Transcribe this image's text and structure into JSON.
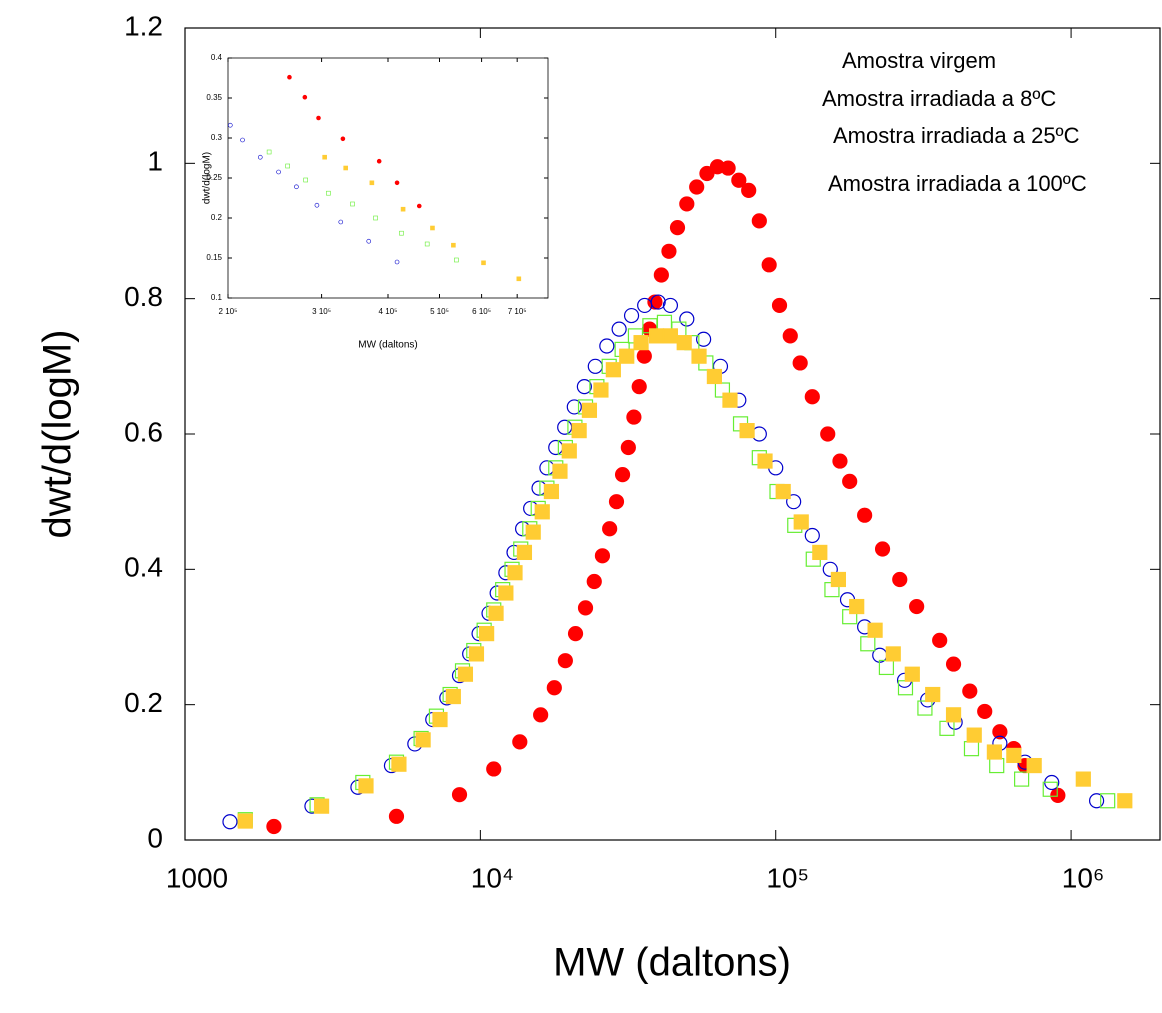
{
  "chart_data": [
    {
      "type": "scatter",
      "x_label": "MW (daltons)",
      "y_label": "dwt/d(logM)",
      "xscale": "log",
      "xlim": [
        1000,
        2000000
      ],
      "ylim": [
        0,
        1.2
      ],
      "xticks": [
        1000,
        {
          "value": 10000,
          "label": "10⁴"
        },
        {
          "value": 100000,
          "label": "10⁵"
        },
        {
          "value": 1000000,
          "label": "10⁶"
        }
      ],
      "yticks": [
        0,
        0.2,
        0.4,
        0.6,
        0.8,
        1,
        1.2
      ],
      "legend": "upper right",
      "series": [
        {
          "name": "Amostra virgem",
          "color": "#ff0000",
          "marker": "circle",
          "filled": true,
          "x": [
            2000,
            5200,
            8500,
            11100,
            13600,
            16000,
            17800,
            19400,
            21000,
            22700,
            24300,
            25900,
            27400,
            28900,
            30300,
            31700,
            33100,
            34500,
            35900,
            37400,
            39000,
            41000,
            43500,
            46500,
            50000,
            54000,
            58500,
            63500,
            69000,
            75000,
            81000,
            88000,
            95000,
            103000,
            112000,
            121000,
            133000,
            150000,
            165000,
            178000,
            200000,
            230000,
            263000,
            300000,
            359000,
            400000,
            454000,
            510000,
            574000,
            640000,
            698000,
            902000
          ],
          "values": [
            0.02,
            0.035,
            0.067,
            0.105,
            0.145,
            0.185,
            0.225,
            0.265,
            0.305,
            0.343,
            0.382,
            0.42,
            0.46,
            0.5,
            0.54,
            0.58,
            0.625,
            0.67,
            0.715,
            0.755,
            0.795,
            0.835,
            0.87,
            0.905,
            0.94,
            0.965,
            0.985,
            0.995,
            0.993,
            0.975,
            0.96,
            0.915,
            0.85,
            0.79,
            0.745,
            0.705,
            0.655,
            0.6,
            0.56,
            0.53,
            0.48,
            0.43,
            0.385,
            0.345,
            0.295,
            0.26,
            0.22,
            0.19,
            0.16,
            0.135,
            0.11,
            0.066
          ]
        },
        {
          "name": "Amostra irradiada a 8ºC",
          "color": "#0000cc",
          "marker": "circle",
          "filled": false,
          "x": [
            1420,
            2690,
            3850,
            5000,
            6000,
            6900,
            7700,
            8500,
            9200,
            9900,
            10700,
            11400,
            12200,
            13000,
            13900,
            14800,
            15800,
            16800,
            18000,
            19300,
            20800,
            22500,
            24500,
            26800,
            29500,
            32500,
            36000,
            40000,
            44000,
            50000,
            57000,
            65000,
            75000,
            88000,
            100000,
            115000,
            133000,
            153000,
            175000,
            200000,
            225000,
            273000,
            327000,
            405000,
            574000,
            698000,
            860000,
            1220000
          ],
          "values": [
            0.027,
            0.05,
            0.078,
            0.11,
            0.142,
            0.178,
            0.21,
            0.243,
            0.275,
            0.305,
            0.335,
            0.365,
            0.395,
            0.425,
            0.46,
            0.49,
            0.52,
            0.55,
            0.58,
            0.61,
            0.64,
            0.67,
            0.7,
            0.73,
            0.755,
            0.775,
            0.79,
            0.795,
            0.79,
            0.77,
            0.74,
            0.7,
            0.65,
            0.6,
            0.55,
            0.5,
            0.45,
            0.4,
            0.355,
            0.315,
            0.273,
            0.236,
            0.207,
            0.174,
            0.143,
            0.115,
            0.085,
            0.058
          ]
        },
        {
          "name": "Amostra irradiada a 25ºC",
          "color": "#66ee33",
          "marker": "square",
          "filled": false,
          "x": [
            1600,
            2800,
            4000,
            5200,
            6300,
            7100,
            7900,
            8700,
            9500,
            10300,
            11100,
            11900,
            12800,
            13700,
            14700,
            15700,
            16800,
            18000,
            19400,
            20900,
            22700,
            24800,
            27300,
            30200,
            33500,
            37500,
            42000,
            47000,
            52000,
            58000,
            66000,
            76000,
            88000,
            101000,
            116000,
            134000,
            155000,
            178000,
            205000,
            237000,
            275000,
            320000,
            380000,
            460000,
            560000,
            680000,
            850000,
            1330000
          ],
          "values": [
            0.03,
            0.052,
            0.085,
            0.115,
            0.15,
            0.183,
            0.215,
            0.25,
            0.28,
            0.31,
            0.34,
            0.37,
            0.4,
            0.43,
            0.46,
            0.49,
            0.52,
            0.55,
            0.58,
            0.61,
            0.64,
            0.67,
            0.7,
            0.725,
            0.745,
            0.76,
            0.765,
            0.755,
            0.735,
            0.705,
            0.665,
            0.615,
            0.565,
            0.515,
            0.465,
            0.415,
            0.37,
            0.33,
            0.29,
            0.255,
            0.225,
            0.195,
            0.165,
            0.135,
            0.11,
            0.09,
            0.075,
            0.058
          ]
        },
        {
          "name": "Amostra irradiada a 100ºC",
          "color": "#ffcc33",
          "marker": "square",
          "filled": true,
          "x": [
            1600,
            2900,
            4100,
            5300,
            6400,
            7300,
            8100,
            8900,
            9700,
            10500,
            11300,
            12200,
            13100,
            14100,
            15100,
            16200,
            17400,
            18600,
            20000,
            21600,
            23400,
            25600,
            28200,
            31300,
            35000,
            39500,
            44000,
            49000,
            55000,
            62000,
            70000,
            80000,
            92000,
            106000,
            122000,
            141000,
            163000,
            188000,
            217000,
            250000,
            290000,
            340000,
            400000,
            470000,
            550000,
            640000,
            750000,
            1100000,
            1520000
          ],
          "values": [
            0.028,
            0.05,
            0.08,
            0.112,
            0.148,
            0.178,
            0.212,
            0.245,
            0.275,
            0.305,
            0.335,
            0.365,
            0.395,
            0.425,
            0.455,
            0.485,
            0.515,
            0.545,
            0.575,
            0.605,
            0.635,
            0.665,
            0.695,
            0.715,
            0.735,
            0.745,
            0.745,
            0.735,
            0.715,
            0.685,
            0.65,
            0.605,
            0.56,
            0.515,
            0.47,
            0.425,
            0.385,
            0.345,
            0.31,
            0.275,
            0.245,
            0.215,
            0.185,
            0.155,
            0.13,
            0.125,
            0.11,
            0.09,
            0.058
          ]
        }
      ]
    },
    {
      "type": "scatter",
      "x_label": "MW (daltons)",
      "y_label": "dwt/d(logM)",
      "xscale": "log",
      "xlim": [
        200000,
        800000
      ],
      "ylim": [
        0.1,
        0.4
      ],
      "xticks": [
        {
          "value": 200000,
          "label": "2 10⁵"
        },
        {
          "value": 300000,
          "label": "3 10⁵"
        },
        {
          "value": 400000,
          "label": "4 10⁵"
        },
        {
          "value": 500000,
          "label": "5 10⁵"
        },
        {
          "value": 600000,
          "label": "6 10⁵"
        },
        {
          "value": 700000,
          "label": "7 10⁵"
        }
      ],
      "yticks": [
        0.1,
        0.15,
        0.2,
        0.25,
        0.3,
        0.35,
        0.4
      ],
      "series": [
        {
          "color": "#ff0000",
          "marker": "circle",
          "filled": true,
          "x": [
            261000,
            279000,
            296000,
            329000,
            385000,
            416000,
            458000
          ],
          "values": [
            0.376,
            0.351,
            0.325,
            0.299,
            0.271,
            0.244,
            0.215
          ]
        },
        {
          "color": "#0000cc",
          "marker": "circle",
          "filled": false,
          "x": [
            202000,
            213000,
            230000,
            249000,
            269000,
            294000,
            326000,
            368000,
            416000
          ],
          "values": [
            0.316,
            0.2975,
            0.276,
            0.2575,
            0.239,
            0.216,
            0.195,
            0.171,
            0.145
          ]
        },
        {
          "color": "#66ee33",
          "marker": "square",
          "filled": false,
          "x": [
            239000,
            259000,
            280000,
            309000,
            343000,
            379000,
            424000,
            474000,
            538000
          ],
          "values": [
            0.2825,
            0.265,
            0.2475,
            0.231,
            0.2175,
            0.2,
            0.181,
            0.1675,
            0.1475
          ]
        },
        {
          "color": "#ffcc33",
          "marker": "square",
          "filled": true,
          "x": [
            304000,
            333000,
            373000,
            427000,
            485000,
            531000,
            605000,
            705000
          ],
          "values": [
            0.276,
            0.2625,
            0.244,
            0.211,
            0.1875,
            0.166,
            0.144,
            0.124
          ]
        }
      ]
    }
  ]
}
